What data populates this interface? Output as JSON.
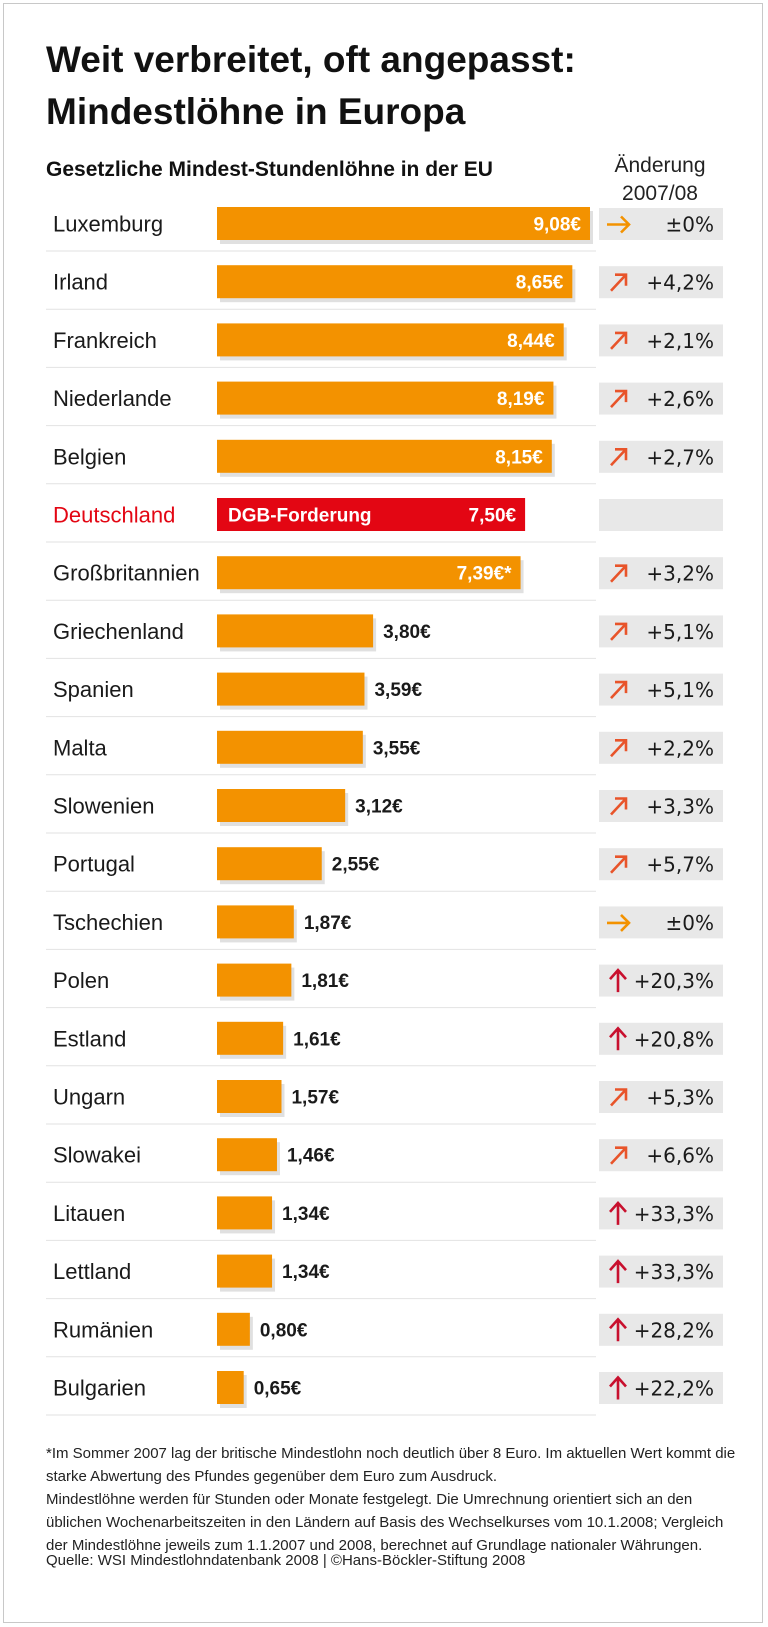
{
  "header": {
    "title_line1": "Weit verbreitet, oft angepasst:",
    "title_line2": "Mindestlöhne in Europa",
    "subtitle": "Gesetzliche Mindest-Stundenlöhne in der EU",
    "change_head_line1": "Änderung",
    "change_head_line2": "2007/08"
  },
  "colors": {
    "bar": "#f39200",
    "bar_shadow": "#e0e0e0",
    "highlight": "#e30613",
    "change_bg": "#e8e8e8",
    "arrow_orange": "#f39200",
    "arrow_red": "#c8102e",
    "row_line": "#e2e2e2"
  },
  "chart_data": {
    "type": "bar",
    "orientation": "horizontal",
    "title": "Gesetzliche Mindest-Stundenlöhne in der EU",
    "xlim": [
      0,
      9.08
    ],
    "unit": "€",
    "categories": [
      "Luxemburg",
      "Irland",
      "Frankreich",
      "Niederlande",
      "Belgien",
      "Deutschland",
      "Großbritannien",
      "Griechenland",
      "Spanien",
      "Malta",
      "Slowenien",
      "Portugal",
      "Tschechien",
      "Polen",
      "Estland",
      "Ungarn",
      "Slowakei",
      "Litauen",
      "Lettland",
      "Rumänien",
      "Bulgarien"
    ],
    "values": [
      9.08,
      8.65,
      8.44,
      8.19,
      8.15,
      7.5,
      7.39,
      3.8,
      3.59,
      3.55,
      3.12,
      2.55,
      1.87,
      1.81,
      1.61,
      1.57,
      1.46,
      1.34,
      1.34,
      0.8,
      0.65
    ],
    "value_labels": [
      "9,08€",
      "8,65€",
      "8,44€",
      "8,19€",
      "8,15€",
      "7,50€",
      "7,39€*",
      "3,80€",
      "3,59€",
      "3,55€",
      "3,12€",
      "2,55€",
      "1,87€",
      "1,81€",
      "1,61€",
      "1,57€",
      "1,46€",
      "1,34€",
      "1,34€",
      "0,80€",
      "0,65€"
    ],
    "highlight": {
      "category": "Deutschland",
      "label": "DGB-Forderung"
    },
    "change_2007_08": [
      "±0%",
      "+4,2%",
      "+2,1%",
      "+2,6%",
      "+2,7%",
      "",
      "+3,2%",
      "+5,1%",
      "+5,1%",
      "+2,2%",
      "+3,3%",
      "+5,7%",
      "±0%",
      "+20,3%",
      "+20,8%",
      "+5,3%",
      "+6,6%",
      "+33,3%",
      "+33,3%",
      "+28,2%",
      "+22,2%"
    ],
    "change_arrow": [
      "right",
      "diagonal",
      "diagonal",
      "diagonal",
      "diagonal",
      "none",
      "diagonal",
      "diagonal",
      "diagonal",
      "diagonal",
      "diagonal",
      "diagonal",
      "right",
      "up",
      "up",
      "diagonal",
      "diagonal",
      "up",
      "up",
      "up",
      "up"
    ]
  },
  "footer": {
    "note1": "*Im Sommer 2007 lag der britische Mindestlohn noch deutlich über 8 Euro. Im aktuellen Wert kommt die starke Abwertung des Pfundes gegenüber dem Euro zum Ausdruck.",
    "note2": "Mindestlöhne werden für Stunden oder Monate festgelegt. Die Umrechnung orientiert sich an den üblichen Wochenarbeitszeiten in den Ländern auf Basis des Wechselkurses vom 10.1.2008; Vergleich der Mindestlöhne jeweils zum 1.1.2007 und 2008, berechnet auf Grundlage nationaler Währungen.",
    "source": "Quelle: WSI Mindestlohndatenbank 2008 | ©Hans-Böckler-Stiftung 2008"
  }
}
